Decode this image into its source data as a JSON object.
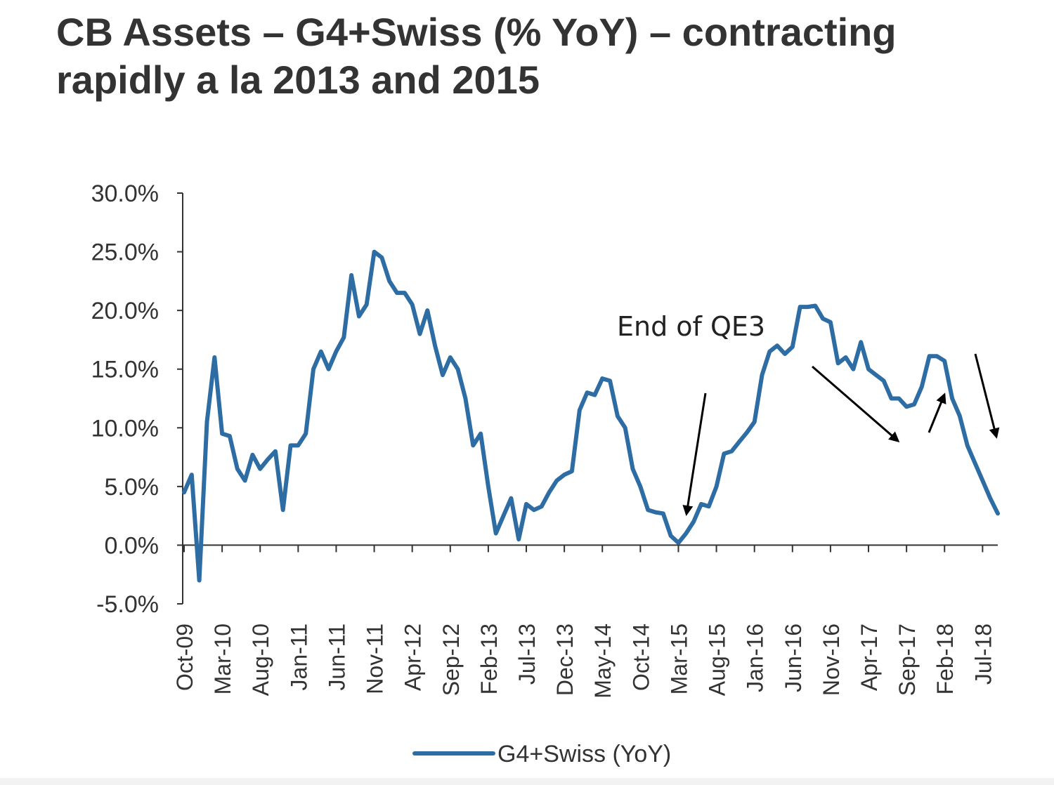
{
  "title_line1": "CB Assets – G4+Swiss (% YoY) – contracting",
  "title_line2": "rapidly a la 2013 and 2015",
  "colors": {
    "series": "#2e6da4",
    "axis": "#333333",
    "arrow": "#000000"
  },
  "annotations": [
    {
      "text": "End of QE3",
      "near": "Mar-15 trough"
    }
  ],
  "arrows": [
    {
      "name": "qe3-arrow",
      "points_to": "Mar-15"
    },
    {
      "name": "decline-arrow-2017",
      "points_to": "Aug-17"
    },
    {
      "name": "rise-arrow-2017",
      "points_to": "Dec-17"
    },
    {
      "name": "decline-arrow-2018",
      "points_to": "Jul-18"
    }
  ],
  "chart_data": {
    "type": "line",
    "title": "CB Assets – G4+Swiss (% YoY) – contracting rapidly a la 2013 and 2015",
    "xlabel": "",
    "ylabel": "",
    "ylim": [
      -5,
      30
    ],
    "yticks": [
      "30.0%",
      "25.0%",
      "20.0%",
      "15.0%",
      "10.0%",
      "5.0%",
      "0.0%",
      "-5.0%"
    ],
    "ytick_values": [
      30,
      25,
      20,
      15,
      10,
      5,
      0,
      -5
    ],
    "xtick_labels": [
      "Oct-09",
      "Mar-10",
      "Aug-10",
      "Jan-11",
      "Jun-11",
      "Nov-11",
      "Apr-12",
      "Sep-12",
      "Feb-13",
      "Jul-13",
      "Dec-13",
      "May-14",
      "Oct-14",
      "Mar-15",
      "Aug-15",
      "Jan-16",
      "Jun-16",
      "Nov-16",
      "Apr-17",
      "Sep-17",
      "Feb-18",
      "Jul-18"
    ],
    "x_start": "Oct-09",
    "x_end": "Sep-18",
    "legend": {
      "label": "G4+Swiss (YoY)",
      "position": "bottom"
    },
    "series": [
      {
        "name": "G4+Swiss (YoY)",
        "values": [
          4.5,
          6.0,
          -3.0,
          10.5,
          16.0,
          9.5,
          9.3,
          6.5,
          5.5,
          7.7,
          6.5,
          7.3,
          8.0,
          3.0,
          8.5,
          8.5,
          9.5,
          15.0,
          16.5,
          15.0,
          16.5,
          17.7,
          23.0,
          19.5,
          20.5,
          25.0,
          24.5,
          22.5,
          21.5,
          21.5,
          20.5,
          18.0,
          20.0,
          17.0,
          14.5,
          16.0,
          15.0,
          12.5,
          8.5,
          9.5,
          5.0,
          1.0,
          2.5,
          4.0,
          0.5,
          3.5,
          3.0,
          3.3,
          4.5,
          5.5,
          6.0,
          6.3,
          11.5,
          13.0,
          12.8,
          14.2,
          14.0,
          11.0,
          10.0,
          6.5,
          5.0,
          3.0,
          2.8,
          2.7,
          0.8,
          0.2,
          1.0,
          2.0,
          3.5,
          3.3,
          5.0,
          7.8,
          8.0,
          8.8,
          9.6,
          10.5,
          14.5,
          16.5,
          17.0,
          16.3,
          16.9,
          20.3,
          20.3,
          20.4,
          19.3,
          19.0,
          15.5,
          16.0,
          15.0,
          17.3,
          15.0,
          14.5,
          14.0,
          12.5,
          12.5,
          11.8,
          12.0,
          13.5,
          16.1,
          16.1,
          15.7,
          12.5,
          11.0,
          8.5,
          7.0,
          5.5,
          4.0,
          2.7
        ]
      }
    ]
  }
}
